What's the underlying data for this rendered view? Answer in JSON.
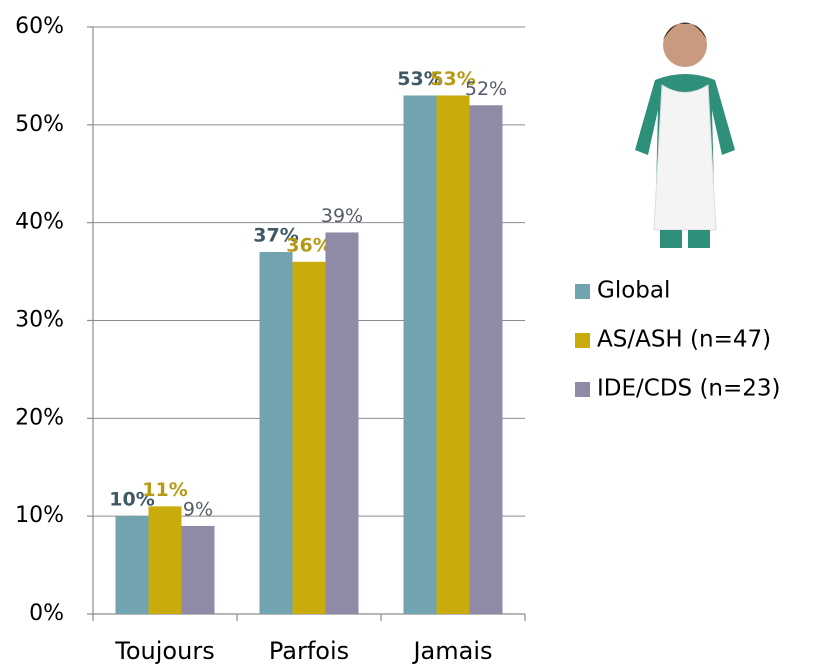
{
  "chart_data": {
    "type": "bar",
    "categories": [
      "Toujours",
      "Parfois",
      "Jamais"
    ],
    "series": [
      {
        "name": "Global",
        "color": "#72a3b0",
        "label_color": "#3e5965",
        "values": [
          10,
          37,
          53
        ],
        "value_labels": [
          "10%",
          "37%",
          "53%"
        ]
      },
      {
        "name": "AS/ASH (n=47)",
        "color": "#c9ab0c",
        "label_color": "#b59a16",
        "values": [
          11,
          36,
          53
        ],
        "value_labels": [
          "11%",
          "36%",
          "53%"
        ]
      },
      {
        "name": "IDE/CDS (n=23)",
        "color": "#8f8aa6",
        "label_color": "#555b6b",
        "values": [
          9,
          39,
          52
        ],
        "value_labels": [
          "9%",
          "39%",
          "52%"
        ]
      }
    ],
    "ylim": [
      0,
      60
    ],
    "yticks": [
      {
        "value": 0,
        "label": "0%"
      },
      {
        "value": 10,
        "label": "10%"
      },
      {
        "value": 20,
        "label": "20%"
      },
      {
        "value": 30,
        "label": "30%"
      },
      {
        "value": 40,
        "label": "40%"
      },
      {
        "value": 50,
        "label": "50%"
      },
      {
        "value": 60,
        "label": "60%"
      }
    ],
    "grid": true,
    "legend": "right"
  }
}
